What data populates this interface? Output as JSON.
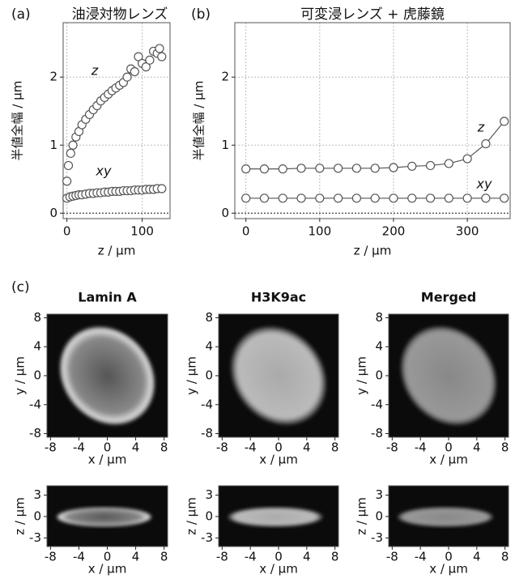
{
  "chart_data": [
    {
      "type": "scatter",
      "label": "(a)",
      "title": "油浸対物レンズ",
      "xlabel": "z / μm",
      "ylabel": "半値全幅 / μm",
      "xlim": [
        -5,
        137
      ],
      "ylim": [
        -0.08,
        2.8
      ],
      "xticks": [
        0,
        100
      ],
      "yticks": [
        0,
        1,
        2
      ],
      "grid": true,
      "zero_line": true,
      "series": [
        {
          "name": "z",
          "color": "#555555",
          "x": [
            0,
            2,
            5,
            8,
            12,
            16,
            20,
            25,
            30,
            35,
            40,
            45,
            50,
            55,
            60,
            65,
            70,
            75,
            80,
            85,
            90,
            95,
            100,
            105,
            110,
            115,
            120,
            123,
            126
          ],
          "values": [
            0.47,
            0.7,
            0.88,
            1.0,
            1.12,
            1.2,
            1.3,
            1.38,
            1.45,
            1.52,
            1.58,
            1.65,
            1.7,
            1.75,
            1.8,
            1.84,
            1.88,
            1.92,
            2.0,
            2.12,
            2.08,
            2.3,
            2.2,
            2.15,
            2.25,
            2.38,
            2.35,
            2.42,
            2.3
          ]
        },
        {
          "name": "xy",
          "color": "#555555",
          "x": [
            0,
            4,
            8,
            12,
            16,
            20,
            25,
            30,
            35,
            40,
            45,
            50,
            55,
            60,
            65,
            70,
            75,
            80,
            85,
            90,
            95,
            100,
            105,
            110,
            115,
            120,
            126
          ],
          "values": [
            0.22,
            0.24,
            0.25,
            0.26,
            0.27,
            0.27,
            0.28,
            0.29,
            0.29,
            0.3,
            0.3,
            0.31,
            0.31,
            0.32,
            0.32,
            0.32,
            0.33,
            0.33,
            0.33,
            0.34,
            0.34,
            0.34,
            0.35,
            0.35,
            0.35,
            0.36,
            0.36
          ]
        }
      ]
    },
    {
      "type": "line",
      "label": "(b)",
      "title": "可変浸レンズ + 虎藤鏡",
      "xlabel": "z / μm",
      "ylabel": "半値全幅 / μm",
      "xlim": [
        -15,
        358
      ],
      "ylim": [
        -0.08,
        2.8
      ],
      "xticks": [
        0,
        100,
        200,
        300
      ],
      "yticks": [
        0,
        1,
        2
      ],
      "grid": true,
      "zero_line": true,
      "series": [
        {
          "name": "z",
          "color": "#555555",
          "x": [
            0,
            25,
            50,
            75,
            100,
            125,
            150,
            175,
            200,
            225,
            250,
            275,
            300,
            325,
            350
          ],
          "values": [
            0.65,
            0.65,
            0.65,
            0.66,
            0.66,
            0.66,
            0.66,
            0.66,
            0.67,
            0.69,
            0.7,
            0.73,
            0.8,
            1.02,
            1.35
          ]
        },
        {
          "name": "xy",
          "color": "#555555",
          "x": [
            0,
            25,
            50,
            75,
            100,
            125,
            150,
            175,
            200,
            225,
            250,
            275,
            300,
            325,
            350
          ],
          "values": [
            0.22,
            0.22,
            0.22,
            0.22,
            0.22,
            0.22,
            0.22,
            0.22,
            0.22,
            0.22,
            0.22,
            0.22,
            0.22,
            0.22,
            0.22
          ]
        }
      ]
    },
    {
      "type": "image",
      "label": "(c)",
      "title": "Lamin A",
      "xlabel": "x / μm",
      "ylabel": "y / μm",
      "xlim": [
        -8.5,
        8.5
      ],
      "ylim": [
        -8.5,
        8.5
      ],
      "xticks": [
        -8,
        -4,
        0,
        4,
        8
      ],
      "yticks": [
        -8,
        -4,
        0,
        4,
        8
      ]
    },
    {
      "type": "image",
      "title": "H3K9ac",
      "xlabel": "x / μm",
      "ylabel": "y / μm",
      "xlim": [
        -8.5,
        8.5
      ],
      "ylim": [
        -8.5,
        8.5
      ],
      "xticks": [
        -8,
        -4,
        0,
        4,
        8
      ],
      "yticks": [
        -8,
        -4,
        0,
        4,
        8
      ]
    },
    {
      "type": "image",
      "title": "Merged",
      "xlabel": "x / μm",
      "ylabel": "y / μm",
      "xlim": [
        -8.5,
        8.5
      ],
      "ylim": [
        -8.5,
        8.5
      ],
      "xticks": [
        -8,
        -4,
        0,
        4,
        8
      ],
      "yticks": [
        -8,
        -4,
        0,
        4,
        8
      ]
    },
    {
      "type": "image",
      "xlabel": "x / μm",
      "ylabel": "z / μm",
      "xlim": [
        -8.5,
        8.5
      ],
      "ylim": [
        -4.2,
        4.3
      ],
      "xticks": [
        -8,
        -4,
        0,
        4,
        8
      ],
      "yticks": [
        -3,
        0,
        3
      ]
    },
    {
      "type": "image",
      "xlabel": "x / μm",
      "ylabel": "z / μm",
      "xlim": [
        -8.5,
        8.5
      ],
      "ylim": [
        -4.2,
        4.3
      ],
      "xticks": [
        -8,
        -4,
        0,
        4,
        8
      ],
      "yticks": [
        -3,
        0,
        3
      ]
    },
    {
      "type": "image",
      "xlabel": "x / μm",
      "ylabel": "z / μm",
      "xlim": [
        -8.5,
        8.5
      ],
      "ylim": [
        -4.2,
        4.3
      ],
      "xticks": [
        -8,
        -4,
        0,
        4,
        8
      ],
      "yticks": [
        -3,
        0,
        3
      ]
    }
  ]
}
